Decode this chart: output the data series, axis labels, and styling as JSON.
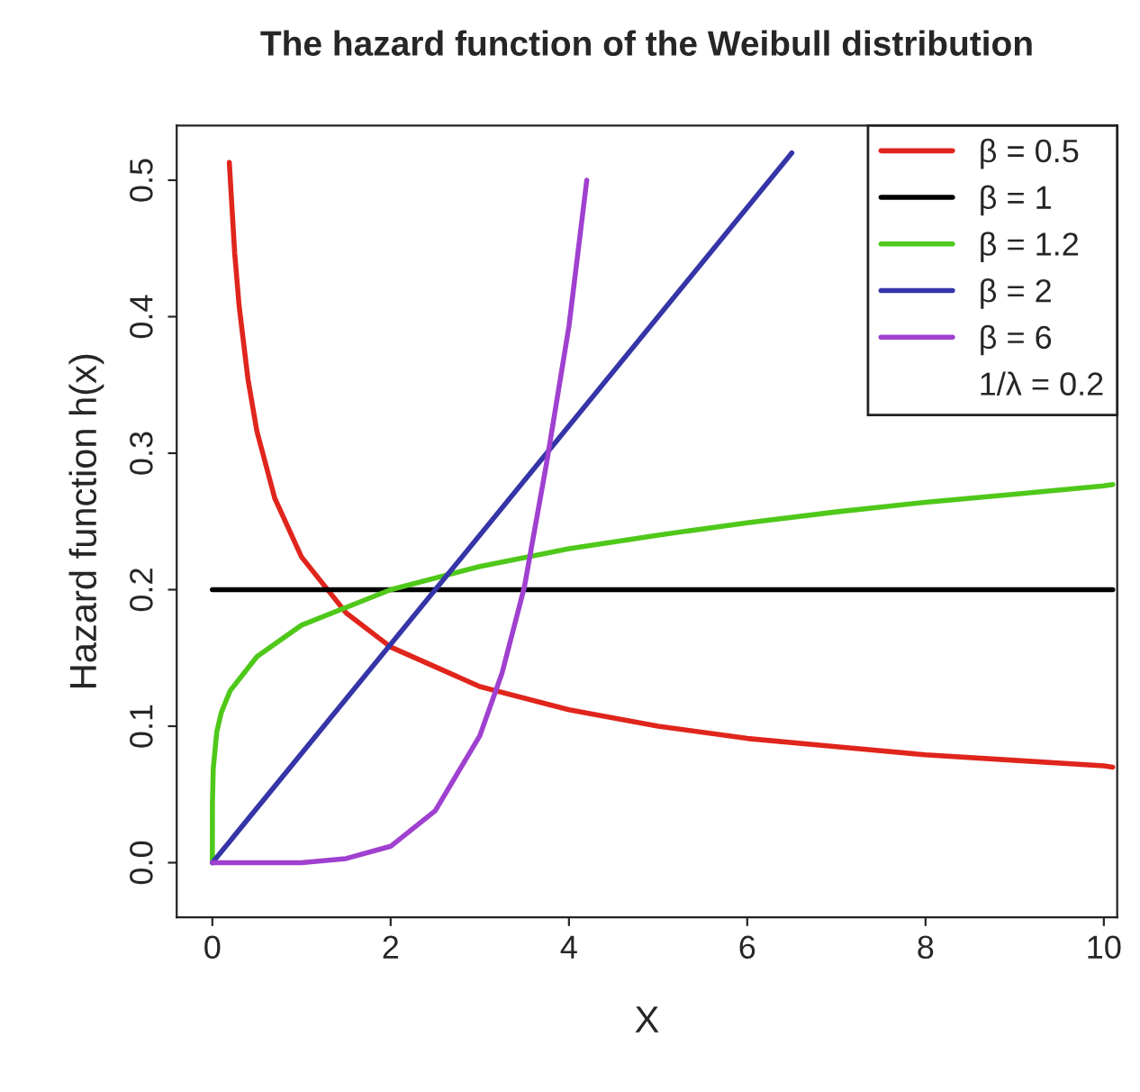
{
  "chart_data": {
    "type": "line",
    "title": "The hazard function of the Weibull distribution",
    "xlabel": "X",
    "ylabel": "Hazard function h(x)",
    "xlim": [
      -0.4,
      10.15
    ],
    "ylim": [
      -0.04,
      0.54
    ],
    "xticks": [
      0,
      2,
      4,
      6,
      8,
      10
    ],
    "yticks": [
      {
        "value": 0.0,
        "label": "0.0"
      },
      {
        "value": 0.1,
        "label": "0.1"
      },
      {
        "value": 0.2,
        "label": "0.2"
      },
      {
        "value": 0.3,
        "label": "0.3"
      },
      {
        "value": 0.4,
        "label": "0.4"
      },
      {
        "value": 0.5,
        "label": "0.5"
      }
    ],
    "grid": false,
    "legend": "top right",
    "marker": "none",
    "line_style": "solid",
    "annotations": [
      "1/λ = 0.2"
    ],
    "series": [
      {
        "name": "β = 0.5",
        "color": "#e0251c",
        "x": [
          0.19,
          0.25,
          0.3,
          0.4,
          0.5,
          0.7,
          1,
          1.5,
          2,
          3,
          4,
          5,
          6,
          7,
          8,
          9,
          10,
          10.1
        ],
        "values": [
          0.513,
          0.447,
          0.408,
          0.354,
          0.316,
          0.267,
          0.224,
          0.183,
          0.158,
          0.129,
          0.112,
          0.1,
          0.091,
          0.085,
          0.079,
          0.075,
          0.071,
          0.07
        ]
      },
      {
        "name": "β = 1",
        "color": "#000000",
        "x": [
          0,
          10.1
        ],
        "values": [
          0.2,
          0.2
        ]
      },
      {
        "name": "β = 1.2",
        "color": "#4fc81a",
        "x": [
          0,
          0.001,
          0.01,
          0.05,
          0.1,
          0.2,
          0.5,
          1,
          2,
          3,
          4,
          5,
          6,
          7,
          8,
          9,
          10,
          10.1
        ],
        "values": [
          0,
          0.044,
          0.069,
          0.096,
          0.11,
          0.126,
          0.151,
          0.174,
          0.2,
          0.217,
          0.23,
          0.24,
          0.249,
          0.257,
          0.264,
          0.27,
          0.276,
          0.277
        ]
      },
      {
        "name": "β = 2",
        "color": "#3535a8",
        "x": [
          0,
          6.5
        ],
        "values": [
          0,
          0.52
        ]
      },
      {
        "name": "β = 6",
        "color": "#a040d0",
        "x": [
          0,
          0.5,
          1,
          1.5,
          2,
          2.5,
          3,
          3.25,
          3.5,
          3.75,
          4,
          4.2
        ],
        "values": [
          0,
          0,
          0,
          0.003,
          0.012,
          0.038,
          0.093,
          0.139,
          0.202,
          0.293,
          0.393,
          0.5
        ]
      }
    ]
  }
}
